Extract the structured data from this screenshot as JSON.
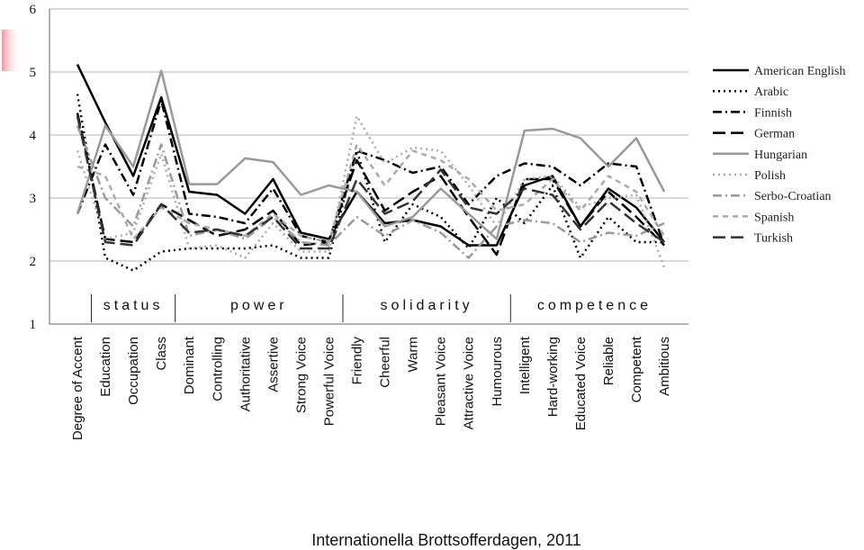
{
  "chart_data": {
    "type": "line",
    "ylim": [
      1,
      6
    ],
    "yticks": [
      "1",
      "2",
      "3",
      "4",
      "5",
      "6"
    ],
    "grid": true,
    "legend_position": "right",
    "categories": [
      "Degree of Accent",
      "Education",
      "Occupation",
      "Class",
      "Dominant",
      "Controlling",
      "Authoritative",
      "Assertive",
      "Strong Voice",
      "Powerful Voice",
      "Friendly",
      "Cheerful",
      "Warm",
      "Pleasant Voice",
      "Attractive Voice",
      "Humourous",
      "Intelligent",
      "Hard-working",
      "Educated Voice",
      "Reliable",
      "Competent",
      "Ambitious"
    ],
    "groups": [
      {
        "label": "status",
        "from": 1,
        "to": 3
      },
      {
        "label": "power",
        "from": 4,
        "to": 9
      },
      {
        "label": "solidarity",
        "from": 10,
        "to": 15
      },
      {
        "label": "competence",
        "from": 16,
        "to": 21
      }
    ],
    "series": [
      {
        "name": "American English",
        "color": "#000000",
        "dash": "solid",
        "values": [
          5.12,
          4.2,
          3.35,
          4.6,
          3.1,
          3.05,
          2.75,
          3.3,
          2.45,
          2.35,
          3.1,
          2.6,
          2.65,
          2.55,
          2.25,
          2.25,
          3.2,
          3.35,
          2.55,
          3.15,
          2.85,
          2.3
        ]
      },
      {
        "name": "Arabic",
        "color": "#000000",
        "dash": "dot",
        "values": [
          4.65,
          2.05,
          1.85,
          2.15,
          2.2,
          2.2,
          2.2,
          2.25,
          2.05,
          2.05,
          3.75,
          2.3,
          2.9,
          2.7,
          2.2,
          3.0,
          2.6,
          3.2,
          2.05,
          2.7,
          2.3,
          2.3
        ]
      },
      {
        "name": "Finnish",
        "color": "#000000",
        "dash": "dashdot",
        "values": [
          2.75,
          3.85,
          3.05,
          4.55,
          2.75,
          2.7,
          2.6,
          3.15,
          2.4,
          2.3,
          3.75,
          3.6,
          3.4,
          3.5,
          2.9,
          3.35,
          3.55,
          3.5,
          3.2,
          3.55,
          3.5,
          2.25
        ]
      },
      {
        "name": "German",
        "color": "#000000",
        "dash": "longdash",
        "values": [
          4.35,
          2.35,
          2.3,
          2.9,
          2.65,
          2.4,
          2.5,
          2.8,
          2.25,
          2.3,
          3.6,
          2.8,
          3.1,
          3.35,
          2.7,
          2.1,
          3.3,
          3.3,
          2.55,
          3.1,
          2.7,
          2.25
        ]
      },
      {
        "name": "Hungarian",
        "color": "#999999",
        "dash": "solid",
        "values": [
          2.75,
          4.15,
          3.5,
          5.02,
          3.22,
          3.22,
          3.63,
          3.57,
          3.05,
          3.2,
          3.1,
          2.55,
          2.7,
          3.15,
          2.75,
          2.35,
          4.07,
          4.1,
          3.95,
          3.5,
          3.95,
          3.1
        ]
      },
      {
        "name": "Polish",
        "color": "#aaaaaa",
        "dash": "dot",
        "values": [
          3.75,
          2.35,
          2.45,
          3.7,
          2.2,
          2.25,
          2.05,
          2.6,
          2.15,
          2.15,
          4.3,
          3.55,
          3.8,
          3.75,
          3.2,
          2.55,
          3.3,
          3.35,
          2.85,
          3.0,
          3.05,
          1.9
        ]
      },
      {
        "name": "Serbo-Croatian",
        "color": "#999999",
        "dash": "dashdot",
        "values": [
          4.15,
          3.0,
          2.55,
          3.85,
          2.4,
          2.5,
          2.35,
          2.7,
          2.3,
          2.25,
          2.7,
          2.4,
          2.65,
          2.45,
          2.05,
          2.55,
          2.65,
          2.6,
          2.3,
          2.45,
          2.4,
          2.6
        ]
      },
      {
        "name": "Spanish",
        "color": "#aaaaaa",
        "dash": "dash",
        "values": [
          3.5,
          3.35,
          2.35,
          2.85,
          2.6,
          2.5,
          2.4,
          2.75,
          2.4,
          2.3,
          3.85,
          3.2,
          3.75,
          3.6,
          3.3,
          2.8,
          2.9,
          3.3,
          2.8,
          3.35,
          3.1,
          2.4
        ]
      },
      {
        "name": "Turkish",
        "color": "#333333",
        "dash": "longdash",
        "values": [
          4.3,
          2.3,
          2.25,
          2.9,
          2.45,
          2.5,
          2.4,
          2.7,
          2.2,
          2.2,
          3.3,
          2.75,
          2.95,
          3.45,
          2.85,
          2.75,
          3.15,
          3.05,
          2.5,
          2.95,
          2.6,
          2.3
        ]
      }
    ]
  },
  "footer": "Internationella Brottsofferdagen, 2011"
}
